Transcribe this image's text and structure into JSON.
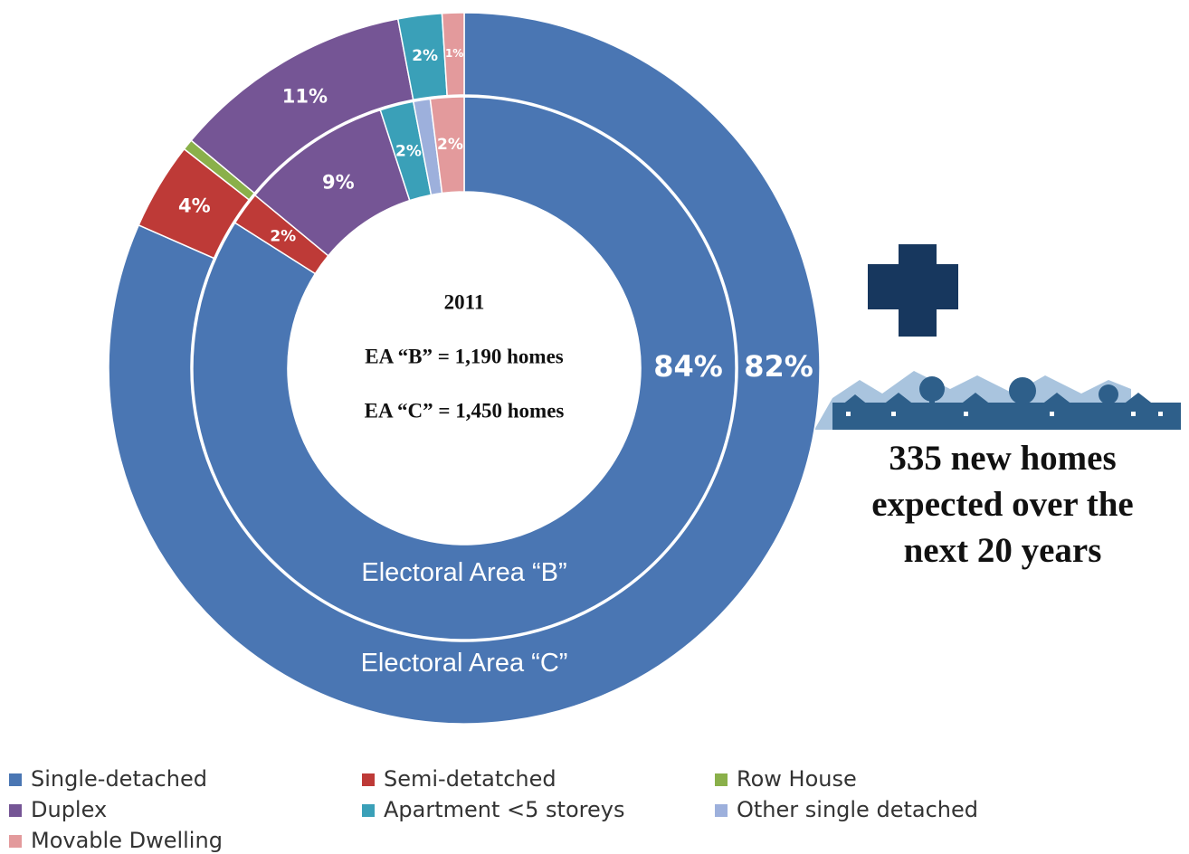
{
  "chart_data": {
    "type": "donut",
    "categories": [
      "Single-detached",
      "Semi-detatched",
      "Row House",
      "Duplex",
      "Apartment <5 storeys",
      "Other single detached",
      "Movable Dwelling"
    ],
    "colors": [
      "#4a76b3",
      "#be3a37",
      "#8ab04a",
      "#755595",
      "#3aa0b8",
      "#9db0dc",
      "#e39a9c"
    ],
    "series": [
      {
        "name": "Electoral Area “B”",
        "values": [
          84,
          2,
          0,
          9,
          2,
          1,
          2
        ],
        "value_labels": [
          "84%",
          "2%",
          null,
          "9%",
          "2%",
          null,
          "2%"
        ]
      },
      {
        "name": "Electoral Area “C”",
        "values": [
          82,
          4,
          0.5,
          11,
          2,
          0,
          1
        ],
        "value_labels": [
          "82%",
          "4%",
          null,
          "11%",
          "2%",
          null,
          "1%"
        ]
      }
    ],
    "center_text": [
      "2011",
      "EA “B” = 1,190 homes",
      "EA “C” = 1,450 homes"
    ],
    "side_text": [
      "335 new homes",
      "expected over the",
      "next 20 years"
    ]
  }
}
